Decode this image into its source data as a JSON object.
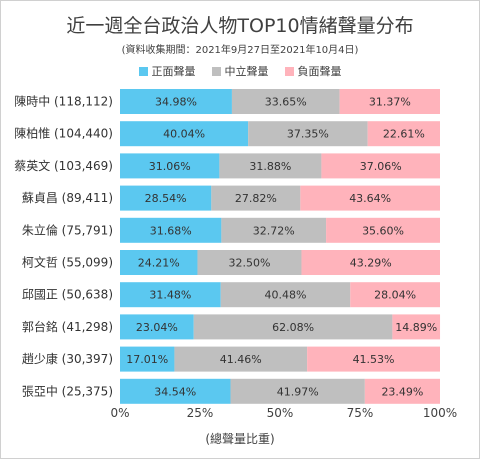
{
  "chart_data": {
    "type": "bar",
    "orientation": "horizontal",
    "stacked": true,
    "title": "近一週全台政治人物TOP10情緒聲量分布",
    "subtitle": "(資料收集期間：2021年9月27日至2021年10月4日)",
    "xlabel": "(總聲量比重)",
    "ylabel": "",
    "xlim": [
      0,
      100
    ],
    "x_ticks": [
      "0%",
      "25%",
      "50%",
      "75%",
      "100%"
    ],
    "legend_placement": "top",
    "grid": false,
    "categories": [
      "陳時中 (118,112)",
      "陳柏惟 (104,440)",
      "蔡英文 (103,469)",
      "蘇貞昌 (89,411)",
      "朱立倫 (75,791)",
      "柯文哲 (55,099)",
      "邱國正 (50,638)",
      "郭台銘 (41,298)",
      "趙少康 (30,397)",
      "張亞中 (25,375)"
    ],
    "series": [
      {
        "name": "正面聲量",
        "color": "#5bc8f0",
        "values": [
          34.98,
          40.04,
          31.06,
          28.54,
          31.68,
          24.21,
          31.48,
          23.04,
          17.01,
          34.54
        ],
        "labels": [
          "34.98%",
          "40.04%",
          "31.06%",
          "28.54%",
          "31.68%",
          "24.21%",
          "31.48%",
          "23.04%",
          "17.01%",
          "34.54%"
        ]
      },
      {
        "name": "中立聲量",
        "color": "#bfbfbf",
        "values": [
          33.65,
          37.35,
          31.88,
          27.82,
          32.72,
          32.5,
          40.48,
          62.08,
          41.46,
          41.97
        ],
        "labels": [
          "33.65%",
          "37.35%",
          "31.88%",
          "27.82%",
          "32.72%",
          "32.50%",
          "40.48%",
          "62.08%",
          "41.46%",
          "41.97%"
        ]
      },
      {
        "name": "負面聲量",
        "color": "#ffb3bb",
        "values": [
          31.37,
          22.61,
          37.06,
          43.64,
          35.6,
          43.29,
          28.04,
          14.89,
          41.53,
          23.49
        ],
        "labels": [
          "31.37%",
          "22.61%",
          "37.06%",
          "43.64%",
          "35.60%",
          "43.29%",
          "28.04%",
          "14.89%",
          "41.53%",
          "23.49%"
        ]
      }
    ]
  }
}
